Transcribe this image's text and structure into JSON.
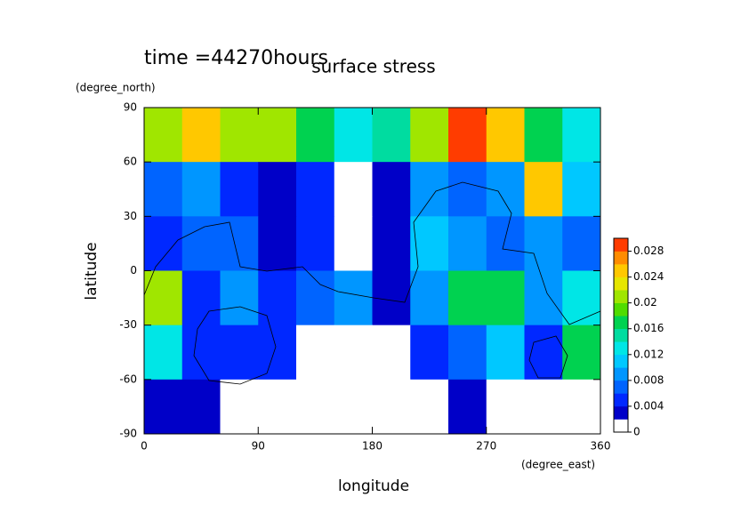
{
  "chart_data": {
    "type": "contour",
    "title": "surface stress",
    "subtitle": "time =44270hours",
    "x_label": "longitude",
    "y_label": "latitude",
    "x_unit": "(degree_east)",
    "y_unit": "(degree_north)",
    "xlim": [
      0,
      360
    ],
    "ylim": [
      -90,
      90
    ],
    "xticks": [
      0,
      90,
      180,
      270,
      360
    ],
    "yticks": [
      -90,
      -60,
      -30,
      0,
      30,
      60,
      90
    ],
    "x": [
      15,
      45,
      75,
      105,
      135,
      165,
      195,
      225,
      255,
      285,
      315,
      345
    ],
    "y": [
      75,
      45,
      15,
      -15,
      -45,
      -75
    ],
    "z": [
      [
        0.02,
        0.024,
        0.02,
        0.02,
        0.016,
        0.012,
        0.014,
        0.02,
        0.03,
        0.024,
        0.016,
        0.012
      ],
      [
        0.006,
        0.008,
        0.004,
        0.002,
        0.004,
        0.001,
        0.002,
        0.008,
        0.006,
        0.008,
        0.024,
        0.01
      ],
      [
        0.004,
        0.006,
        0.006,
        0.002,
        0.004,
        0.001,
        0.002,
        0.01,
        0.008,
        0.006,
        0.008,
        0.006
      ],
      [
        0.02,
        0.004,
        0.008,
        0.004,
        0.006,
        0.008,
        0.002,
        0.008,
        0.016,
        0.016,
        0.008,
        0.012
      ],
      [
        0.012,
        0.004,
        0.004,
        0.004,
        0.001,
        0.001,
        0.001,
        0.004,
        0.006,
        0.01,
        0.004,
        0.016
      ],
      [
        0.003,
        0.003,
        0.001,
        0.001,
        0.001,
        0.001,
        0.001,
        0.001,
        0.003,
        0.001,
        0.001,
        0.001
      ]
    ],
    "colorbar": {
      "clim": [
        0,
        0.03
      ],
      "ticks": [
        0,
        0.004,
        0.008,
        0.012,
        0.016,
        0.02,
        0.024,
        0.028
      ],
      "colors": [
        "#ffffff",
        "#0000c8",
        "#0028ff",
        "#0064ff",
        "#0096ff",
        "#00c8ff",
        "#00e6e6",
        "#00dca0",
        "#00d250",
        "#50dc00",
        "#a0e600",
        "#e6e600",
        "#ffc800",
        "#ff8c00",
        "#ff3c00"
      ]
    }
  }
}
